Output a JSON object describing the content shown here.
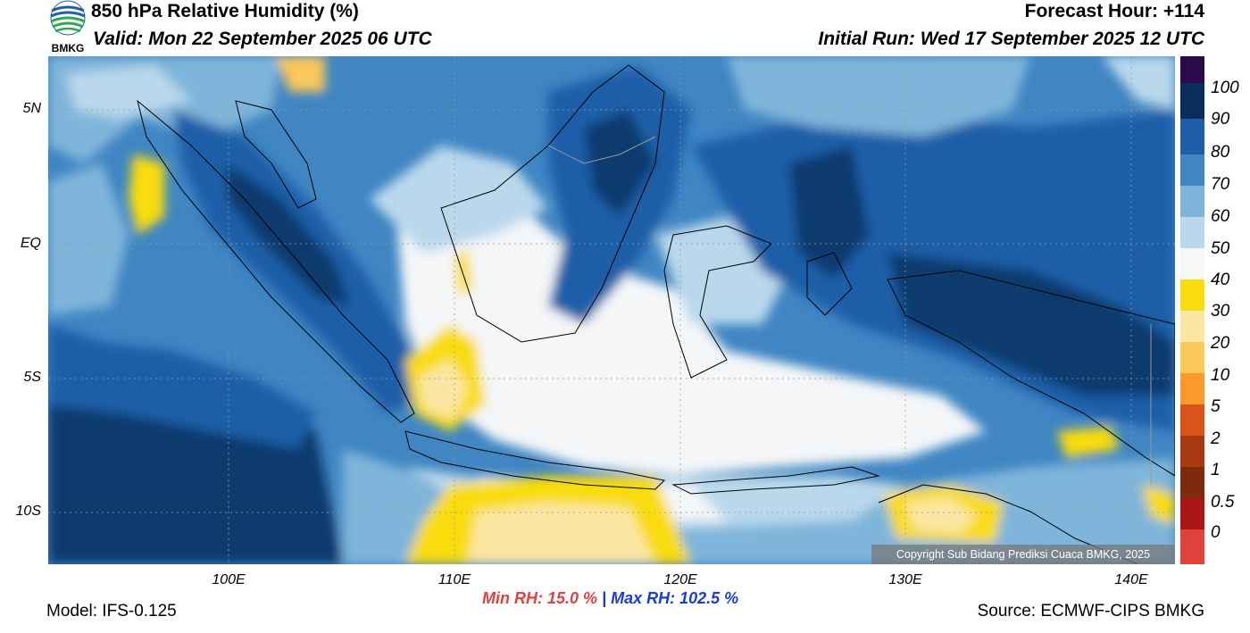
{
  "header": {
    "title": "850 hPa Relative Humidity (%)",
    "valid": "Valid: Mon 22 September 2025 06 UTC",
    "forecast_hour": "Forecast Hour: +114",
    "initial_run": "Initial Run: Wed 17 September 2025 12 UTC",
    "logo_text": "BMKG"
  },
  "map": {
    "lat_labels": [
      "5N",
      "EQ",
      "5S",
      "10S"
    ],
    "lon_labels": [
      "100E",
      "110E",
      "120E",
      "130E",
      "140E"
    ],
    "copyright": "Copyright Sub Bidang Prediksi Cuaca BMKG, 2025",
    "colors": {
      "rh_90_100": "#0b3a6e",
      "rh_80_90": "#1f5ea8",
      "rh_70_80": "#3f86c3",
      "rh_60_70": "#7fb5da",
      "rh_50_60": "#b9d8ec",
      "rh_40_50": "#f4f6f8",
      "rh_30_40": "#f9dc10",
      "rh_20_30": "#fbe6a3"
    }
  },
  "colorbar": {
    "labels": [
      "100",
      "90",
      "80",
      "70",
      "60",
      "50",
      "40",
      "30",
      "20",
      "10",
      "5",
      "2",
      "1",
      "0.5",
      "0"
    ],
    "colors": [
      "#2a0a4a",
      "#0b2d5e",
      "#1f5ea8",
      "#3f86c3",
      "#7fb5da",
      "#b9d8ec",
      "#dcebf5",
      "#f7f7f7",
      "#f9dc10",
      "#fbe6a3",
      "#fbc85a",
      "#f99a2a",
      "#d9541a",
      "#a8390e",
      "#7e2a0c",
      "#5a1e0a",
      "#a8161a",
      "#e0413d"
    ]
  },
  "footer": {
    "model": "Model: IFS-0.125",
    "min_rh": "Min RH:  15.0 %",
    "separator": "|",
    "max_rh": "Max RH: 102.5 %",
    "source": "Source: ECMWF-CIPS BMKG"
  }
}
